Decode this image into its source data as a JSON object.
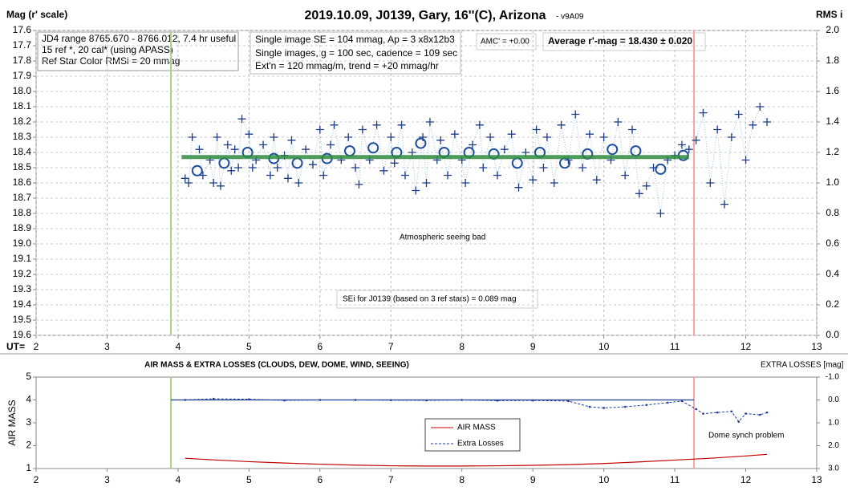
{
  "chart_data": [
    {
      "type": "scatter",
      "title": "2019.10.09, J0139, Gary, 16''(C), Arizona",
      "subtitle": " - v9A09",
      "y_label": "Mag (r' scale)",
      "y2_label": "RMS i",
      "x_label": "UT=",
      "info_box": [
        "JD4 range 8765.670 - 8766.012, 7.4 hr useful",
        "15 ref *, 20 cal* (using APASS)",
        "Ref Star Color RMSi = 20 mmag"
      ],
      "settings_box": [
        "Single image SE = 104 mmag, Ap = 3 x8x12b3",
        "Single images, g = 100 sec, cadence = 109 sec",
        "Ext'n = 120 mmag/m, trend = +20 mmag/hr"
      ],
      "amc": "AMC' = +0.00",
      "average": "Average r'-mag =  18.430 ± 0.020",
      "note": "Atmospheric seeing bad",
      "se_note": "SEi for J0139 (based on 3 ref stars) = 0.089 mag",
      "xlim": [
        2,
        13
      ],
      "xticks": [
        2,
        3,
        4,
        5,
        6,
        7,
        8,
        9,
        10,
        11,
        12,
        13
      ],
      "ylim": [
        19.6,
        17.6
      ],
      "yticks": [
        17.6,
        17.7,
        17.8,
        17.9,
        {
          "value": 18,
          "label": "18.0"
        },
        18.1,
        18.2,
        18.3,
        18.4,
        18.5,
        18.6,
        18.7,
        18.8,
        18.9,
        {
          "value": 19,
          "label": "19.0"
        },
        19.1,
        19.2,
        19.3,
        19.4,
        19.5,
        19.6
      ],
      "y2lim": [
        0,
        2
      ],
      "y2ticks": [
        {
          "value": 0,
          "label": "0.0"
        },
        0.2,
        0.4,
        0.6,
        0.8,
        {
          "value": 1,
          "label": "1.0"
        },
        1.2,
        1.4,
        1.6,
        1.8,
        {
          "value": 2,
          "label": "2.0"
        }
      ],
      "grid": true,
      "vlines": [
        {
          "x": 3.9,
          "color": "#a9d18e"
        },
        {
          "x": 11.27,
          "color": "#f4a7a7"
        }
      ],
      "series": [
        {
          "marker": "plus",
          "color": "#1f3c88",
          "line_color": "#9dc3e6",
          "x": [
            4.1,
            4.15,
            4.2,
            4.3,
            4.35,
            4.45,
            4.5,
            4.55,
            4.6,
            4.7,
            4.75,
            4.8,
            4.85,
            4.9,
            5.0,
            5.05,
            5.1,
            5.2,
            5.3,
            5.35,
            5.4,
            5.5,
            5.55,
            5.6,
            5.7,
            5.8,
            5.9,
            6.0,
            6.05,
            6.15,
            6.2,
            6.3,
            6.4,
            6.5,
            6.55,
            6.6,
            6.7,
            6.8,
            6.9,
            7.0,
            7.05,
            7.15,
            7.2,
            7.3,
            7.35,
            7.45,
            7.5,
            7.55,
            7.65,
            7.7,
            7.8,
            7.9,
            8.0,
            8.05,
            8.15,
            8.25,
            8.3,
            8.4,
            8.5,
            8.6,
            8.7,
            8.8,
            8.9,
            9.0,
            9.05,
            9.15,
            9.2,
            9.3,
            9.4,
            9.5,
            9.6,
            9.7,
            9.8,
            9.9,
            10.0,
            10.1,
            10.2,
            10.3,
            10.4,
            10.5,
            10.6,
            10.7,
            10.8,
            10.9,
            11.0,
            11.1,
            11.2,
            11.3,
            11.4,
            11.5,
            11.6,
            11.7,
            11.8,
            11.9,
            12.0,
            12.1,
            12.2,
            12.3
          ],
          "values": [
            18.57,
            18.6,
            18.3,
            18.38,
            18.55,
            18.45,
            18.6,
            18.3,
            18.62,
            18.35,
            18.52,
            18.38,
            18.5,
            18.18,
            18.28,
            18.5,
            18.45,
            18.35,
            18.55,
            18.3,
            18.5,
            18.42,
            18.57,
            18.32,
            18.6,
            18.38,
            18.48,
            18.25,
            18.55,
            18.35,
            18.22,
            18.45,
            18.3,
            18.5,
            18.61,
            18.25,
            18.45,
            18.22,
            18.52,
            18.3,
            18.47,
            18.22,
            18.55,
            18.4,
            18.65,
            18.3,
            18.6,
            18.2,
            18.45,
            18.32,
            18.55,
            18.28,
            18.45,
            18.6,
            18.35,
            18.22,
            18.5,
            18.3,
            18.55,
            18.38,
            18.28,
            18.63,
            18.4,
            18.58,
            18.25,
            18.5,
            18.3,
            18.6,
            18.22,
            18.45,
            18.15,
            18.5,
            18.28,
            18.58,
            18.3,
            18.45,
            18.2,
            18.55,
            18.25,
            18.67,
            18.62,
            18.5,
            18.8,
            18.45,
            18.42,
            18.35,
            18.38,
            18.32,
            18.14,
            18.6,
            18.25,
            18.74,
            18.3,
            18.15,
            18.45,
            18.22,
            18.1,
            18.2
          ]
        },
        {
          "marker": "circle",
          "color": "#1f4e9c",
          "x": [
            4.27,
            4.65,
            4.98,
            5.35,
            5.68,
            6.1,
            6.42,
            6.75,
            7.08,
            7.42,
            7.75,
            8.1,
            8.45,
            8.78,
            9.1,
            9.45,
            9.77,
            10.12,
            10.45,
            10.8,
            11.12
          ],
          "values": [
            18.52,
            18.47,
            18.4,
            18.44,
            18.47,
            18.44,
            18.39,
            18.37,
            18.4,
            18.34,
            18.4,
            18.4,
            18.41,
            18.47,
            18.4,
            18.47,
            18.41,
            18.38,
            18.39,
            18.51,
            18.42
          ]
        },
        {
          "marker": "none",
          "color": "#2e8b3e",
          "x": [
            4.05,
            11.2
          ],
          "values": [
            18.43,
            18.43
          ]
        }
      ]
    },
    {
      "type": "line",
      "title": "AIR MASS & EXTRA LOSSES (CLOUDS, DEW, DOME, WIND, SEEING)",
      "y_label": "AIR MASS",
      "y2_label": "EXTRA LOSSES [mag]",
      "note": "Dome synch problem",
      "xlim": [
        2,
        13
      ],
      "xticks": [
        2,
        3,
        4,
        5,
        6,
        7,
        8,
        9,
        10,
        11,
        12,
        13
      ],
      "ylim": [
        1,
        5
      ],
      "yticks": [
        1,
        2,
        3,
        4,
        5
      ],
      "y2lim": [
        3,
        -1
      ],
      "y2ticks": [
        {
          "value": -1,
          "label": "-1.0"
        },
        {
          "value": 0,
          "label": "0.0"
        },
        {
          "value": 1,
          "label": "1.0"
        },
        {
          "value": 2,
          "label": "2.0"
        },
        {
          "value": 3,
          "label": "3.0"
        }
      ],
      "grid": false,
      "vlines": [
        {
          "x": 3.9,
          "color": "#a9d18e"
        },
        {
          "x": 11.27,
          "color": "#f4a7a7"
        }
      ],
      "reference_line": {
        "x": [
          3.9,
          11.27
        ],
        "value": 0,
        "axis": "y2",
        "color": "#1f3c88"
      },
      "series": [
        {
          "name": "AIR MASS",
          "color": "#c00000",
          "marker": "none",
          "x": [
            4.1,
            4.5,
            5,
            5.5,
            6,
            6.5,
            7,
            7.5,
            8,
            8.5,
            9,
            9.5,
            10,
            10.5,
            11,
            11.5,
            12,
            12.3
          ],
          "values": [
            1.45,
            1.38,
            1.3,
            1.24,
            1.19,
            1.15,
            1.12,
            1.11,
            1.11,
            1.12,
            1.14,
            1.17,
            1.22,
            1.29,
            1.37,
            1.45,
            1.55,
            1.62
          ]
        },
        {
          "name": "Extra Losses",
          "color": "#1f3c9c",
          "marker": "dot",
          "axis": "y2",
          "dashed": true,
          "x": [
            4.1,
            4.5,
            5,
            5.5,
            6,
            6.5,
            7,
            7.5,
            8,
            8.5,
            9,
            9.5,
            9.8,
            10,
            10.3,
            10.6,
            10.9,
            11.1,
            11.3,
            11.4,
            11.6,
            11.8,
            11.9,
            12,
            12.2,
            12.3
          ],
          "values": [
            0.0,
            -0.05,
            -0.03,
            0.02,
            0.0,
            0.0,
            0.01,
            0.02,
            0.0,
            0.03,
            0.02,
            0.05,
            0.3,
            0.35,
            0.3,
            0.22,
            0.12,
            0.05,
            0.4,
            0.6,
            0.55,
            0.5,
            0.95,
            0.6,
            0.65,
            0.55
          ]
        }
      ]
    }
  ]
}
